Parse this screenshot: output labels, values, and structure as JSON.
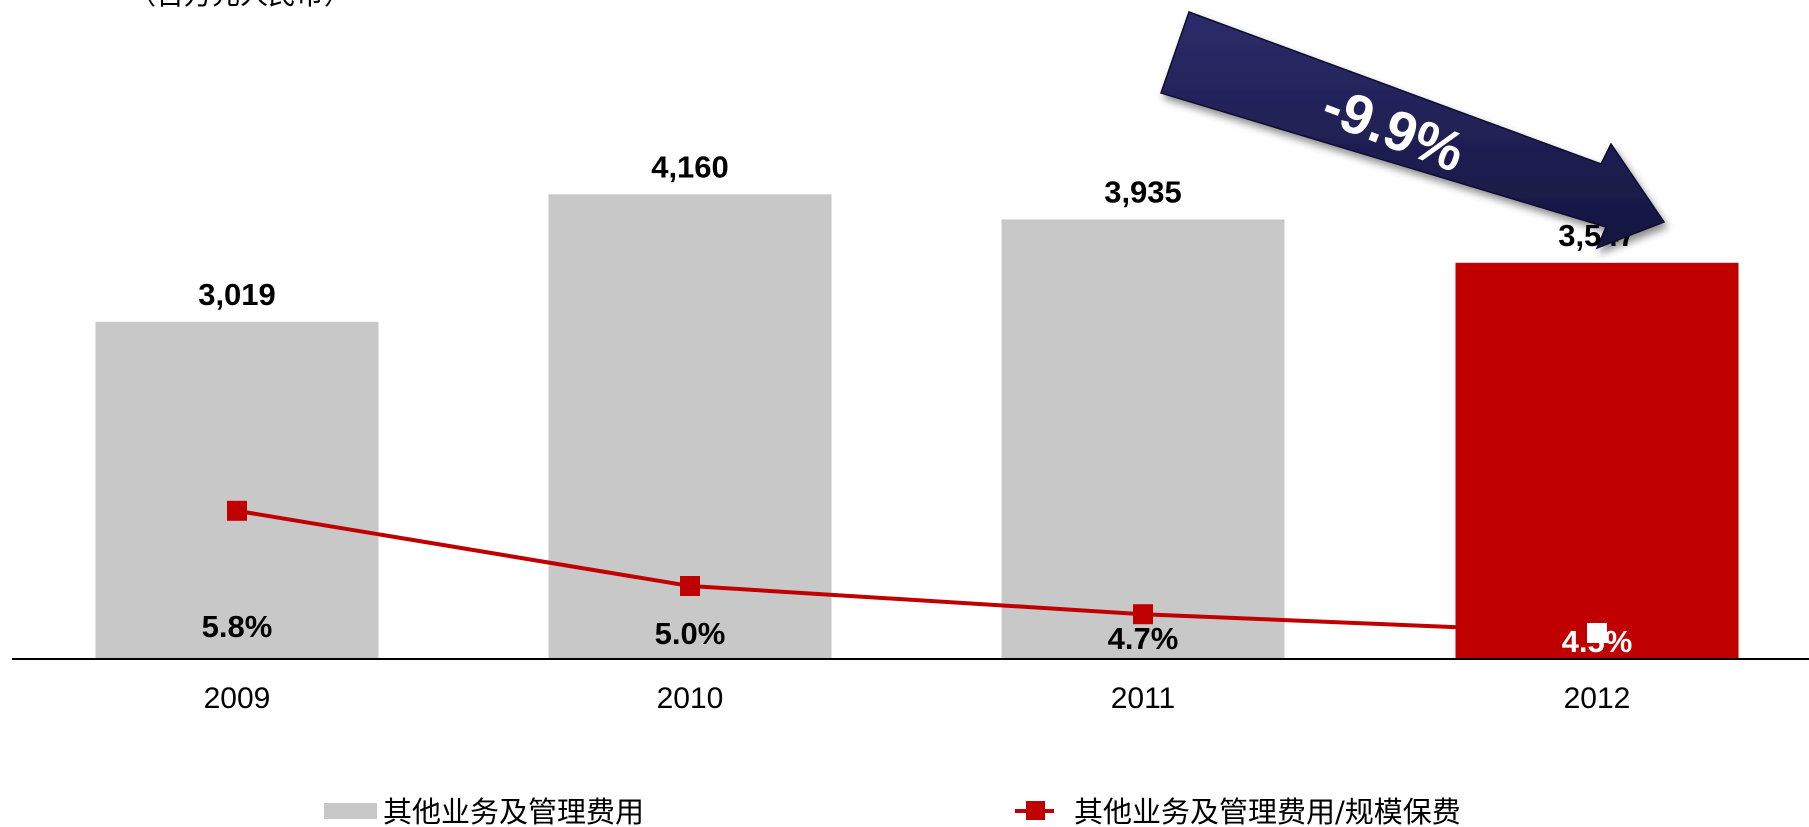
{
  "chart_data": {
    "type": "bar",
    "subtitle": "（百万元人民币）",
    "categories": [
      "2009",
      "2010",
      "2011",
      "2012"
    ],
    "series": [
      {
        "name": "其他业务及管理费用",
        "type": "bar",
        "values": [
          3019,
          4160,
          3935,
          3547
        ],
        "labels": [
          "3,019",
          "4,160",
          "3,935",
          "3,547"
        ],
        "colors": [
          "#c8c8c8",
          "#c8c8c8",
          "#c8c8c8",
          "#c00000"
        ]
      },
      {
        "name": "其他业务及管理费用/规模保费",
        "type": "line",
        "values": [
          5.8,
          5.0,
          4.7,
          4.5
        ],
        "labels": [
          "5.8%",
          "5.0%",
          "4.7%",
          "4.5%"
        ],
        "color": "#c00000"
      }
    ],
    "annotation": {
      "text": "-9.9%",
      "color": "#1f1f4f"
    },
    "ylim": [
      0,
      5000
    ],
    "legend_position": "bottom",
    "grid": false
  }
}
